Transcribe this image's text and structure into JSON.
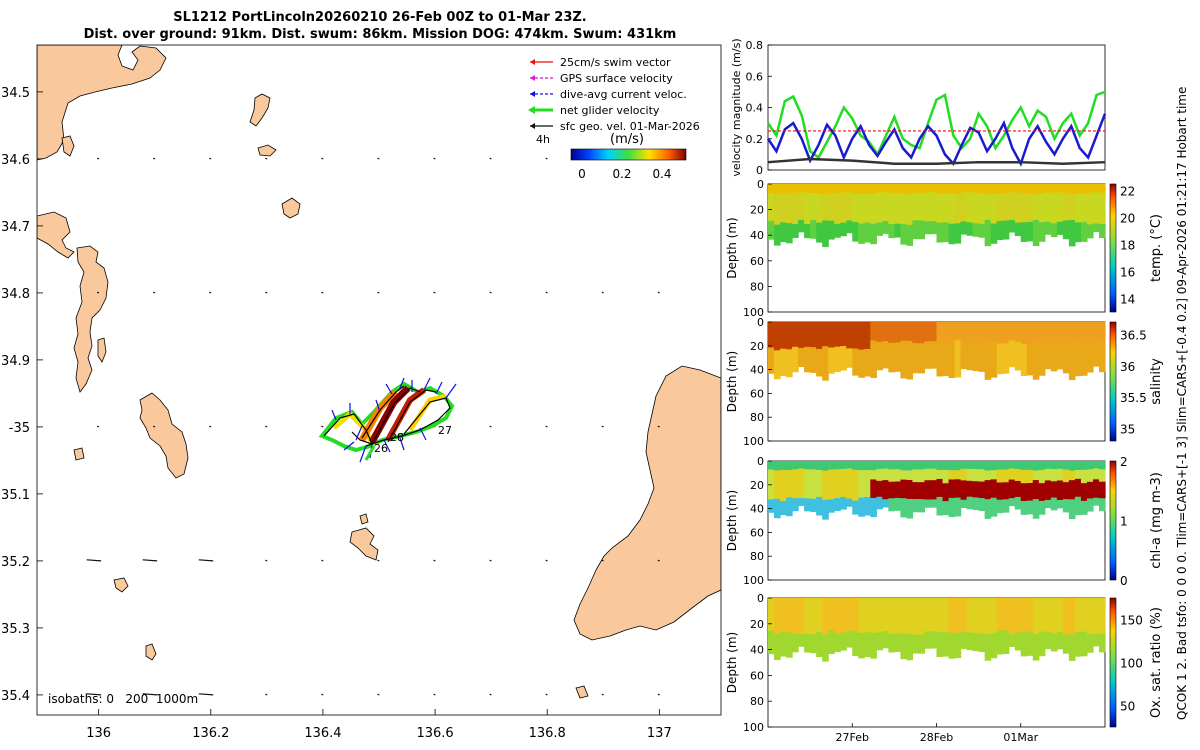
{
  "title_line1": "SL1212 PortLincoln20260210 26-Feb 00Z to 01-Mar 23Z.",
  "title_line2": "Dist. over ground: 91km. Dist. swum: 86km. Mission DOG: 474km. Swum: 431km",
  "side_note": "QCOK 1  2. Bad tsfo: 0  0  0  0. Tlim=CARS+[-1 3] Slim=CARS+[-0.4 0.2] 09-Apr-2026 01:21:17 Hobart time",
  "colors": {
    "land": "#f9c89c",
    "swim": "#e81010",
    "gps": "#d020d0",
    "dive": "#1010e0",
    "net": "#22dd22",
    "geo": "#111111"
  },
  "chart_data": [
    {
      "type": "map",
      "lon_ticks": [
        "136",
        "136.2",
        "136.4",
        "136.6",
        "136.8",
        "137"
      ],
      "lat_ticks": [
        "34.5",
        "34.6",
        "34.7",
        "34.8",
        "34.9",
        "-35",
        "35.1",
        "35.2",
        "35.3",
        "35.4"
      ],
      "xlim": [
        135.89,
        137.11
      ],
      "ylim": [
        -35.43,
        -34.43
      ],
      "legend": [
        {
          "label": "25cm/s swim vector",
          "color": "#e81010"
        },
        {
          "label": "GPS surface velocity",
          "color": "#d020d0"
        },
        {
          "label": "dive-avg current veloc.",
          "color": "#1010e0"
        },
        {
          "label": "net glider velocity",
          "color": "#22dd22"
        },
        {
          "label": "sfc geo. vel. 01-Mar-2026",
          "color": "#111111"
        }
      ],
      "time_label": "4h",
      "colorbar": {
        "label": "(m/s)",
        "ticks": [
          "0",
          "0.2",
          "0.4"
        ],
        "range": [
          0,
          0.5
        ]
      },
      "isobaths": "isobaths: 0   200  1000m",
      "day_labels": [
        "28",
        "27",
        "26"
      ]
    },
    {
      "type": "line",
      "ylabel": "velocity magnitude (m/s)",
      "ylim": [
        0,
        0.8
      ],
      "yticks": [
        "0",
        "0.2",
        "0.4",
        "0.6",
        "0.8"
      ],
      "xlim": [
        0,
        4
      ],
      "series": [
        {
          "name": "net glider velocity",
          "color": "#22dd22",
          "x": [
            0,
            0.1,
            0.2,
            0.3,
            0.4,
            0.5,
            0.6,
            0.7,
            0.8,
            0.9,
            1,
            1.1,
            1.2,
            1.3,
            1.4,
            1.5,
            1.6,
            1.7,
            1.8,
            1.9,
            2,
            2.1,
            2.2,
            2.3,
            2.4,
            2.5,
            2.6,
            2.7,
            2.8,
            2.9,
            3,
            3.1,
            3.2,
            3.3,
            3.4,
            3.5,
            3.6,
            3.7,
            3.8,
            3.9,
            4
          ],
          "y": [
            0.3,
            0.22,
            0.44,
            0.47,
            0.35,
            0.12,
            0.08,
            0.18,
            0.28,
            0.4,
            0.33,
            0.22,
            0.18,
            0.1,
            0.22,
            0.34,
            0.2,
            0.16,
            0.14,
            0.3,
            0.45,
            0.48,
            0.22,
            0.14,
            0.2,
            0.36,
            0.28,
            0.14,
            0.22,
            0.32,
            0.4,
            0.28,
            0.38,
            0.34,
            0.2,
            0.3,
            0.36,
            0.22,
            0.3,
            0.48,
            0.5
          ]
        },
        {
          "name": "dive-avg current veloc.",
          "color": "#1a1ad0",
          "x": [
            0,
            0.1,
            0.2,
            0.3,
            0.4,
            0.5,
            0.6,
            0.7,
            0.8,
            0.9,
            1,
            1.1,
            1.2,
            1.3,
            1.4,
            1.5,
            1.6,
            1.7,
            1.8,
            1.9,
            2,
            2.1,
            2.2,
            2.3,
            2.4,
            2.5,
            2.6,
            2.7,
            2.8,
            2.9,
            3,
            3.1,
            3.2,
            3.3,
            3.4,
            3.5,
            3.6,
            3.7,
            3.8,
            3.9,
            4
          ],
          "y": [
            0.2,
            0.12,
            0.26,
            0.3,
            0.2,
            0.06,
            0.16,
            0.29,
            0.22,
            0.08,
            0.2,
            0.28,
            0.16,
            0.09,
            0.18,
            0.26,
            0.14,
            0.08,
            0.2,
            0.28,
            0.22,
            0.1,
            0.04,
            0.16,
            0.27,
            0.24,
            0.12,
            0.2,
            0.3,
            0.14,
            0.04,
            0.2,
            0.28,
            0.18,
            0.1,
            0.2,
            0.28,
            0.14,
            0.08,
            0.22,
            0.36
          ]
        },
        {
          "name": "sfc geo. vel.",
          "color": "#333333",
          "x": [
            0,
            0.5,
            1,
            1.5,
            2,
            2.5,
            3,
            3.5,
            4
          ],
          "y": [
            0.05,
            0.07,
            0.06,
            0.04,
            0.04,
            0.05,
            0.05,
            0.04,
            0.05
          ]
        },
        {
          "name": "25cm/s swim vector",
          "color": "#e81010",
          "x": [
            0,
            4
          ],
          "y": [
            0.25,
            0.25
          ]
        }
      ]
    },
    {
      "type": "heatmap",
      "ylabel": "Depth (m)",
      "cbar_label": "temp. (°C)",
      "cbar_ticks": [
        "22",
        "20",
        "18",
        "16",
        "14"
      ],
      "clim": [
        13,
        22.5
      ],
      "yticks": [
        "0",
        "20",
        "40",
        "60",
        "80",
        "100"
      ]
    },
    {
      "type": "heatmap",
      "ylabel": "Depth (m)",
      "cbar_label": "salinity",
      "cbar_ticks": [
        "36.5",
        "36",
        "35.5",
        "35"
      ],
      "clim": [
        34.8,
        36.7
      ],
      "yticks": [
        "0",
        "20",
        "40",
        "60",
        "80",
        "100"
      ]
    },
    {
      "type": "heatmap",
      "ylabel": "Depth (m)",
      "cbar_label": "chl-a  (mg m-3)",
      "cbar_ticks": [
        "2",
        "1",
        "0"
      ],
      "clim": [
        0,
        2
      ],
      "yticks": [
        "0",
        "20",
        "40",
        "60",
        "80",
        "100"
      ]
    },
    {
      "type": "heatmap",
      "ylabel": "Depth (m)",
      "cbar_label": "Ox. sat. ratio (%)",
      "cbar_ticks": [
        "150",
        "100",
        "50"
      ],
      "clim": [
        25,
        175
      ],
      "yticks": [
        "0",
        "20",
        "40",
        "60",
        "80",
        "100"
      ],
      "xticks": [
        "27Feb",
        "28Feb",
        "01Mar"
      ]
    }
  ]
}
